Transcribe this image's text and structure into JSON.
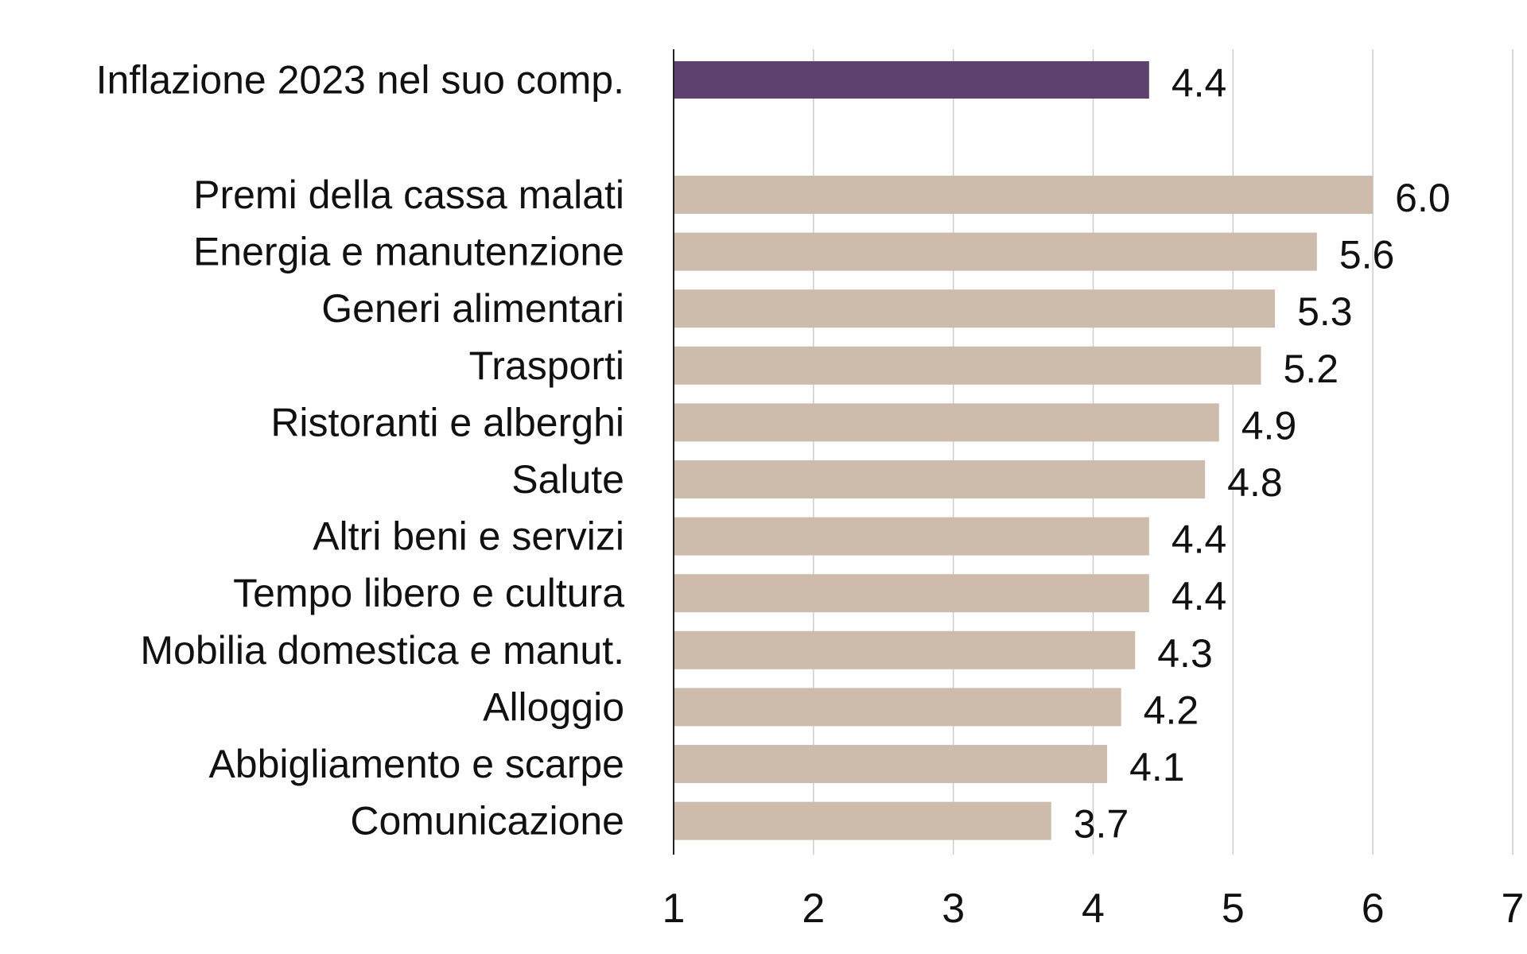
{
  "chart_data": {
    "type": "bar",
    "orientation": "horizontal",
    "title": "",
    "xlabel": "",
    "ylabel": "",
    "xlim": [
      1,
      7
    ],
    "xticks": [
      "1",
      "2",
      "3",
      "4",
      "5",
      "6",
      "7"
    ],
    "grid": true,
    "highlight": {
      "category": "Inflazione 2023 nel suo comp.",
      "value": 4.4,
      "label": "4.4",
      "color": "#5f4170"
    },
    "categories": [
      "Premi della cassa malati",
      "Energia e manutenzione",
      "Generi alimentari",
      "Trasporti",
      "Ristoranti e alberghi",
      "Salute",
      "Altri beni e servizi",
      "Tempo libero e cultura",
      "Mobilia domestica e manut.",
      "Alloggio",
      "Abbigliamento e scarpe",
      "Comunicazione"
    ],
    "values": [
      6.0,
      5.6,
      5.3,
      5.2,
      4.9,
      4.8,
      4.4,
      4.4,
      4.3,
      4.2,
      4.1,
      3.7
    ],
    "labels": [
      "6.0",
      "5.6",
      "5.3",
      "5.2",
      "4.9",
      "4.8",
      "4.4",
      "4.4",
      "4.3",
      "4.2",
      "4.1",
      "3.7"
    ],
    "bar_color": "#cdbcab",
    "grid_color": "#cccccc"
  }
}
